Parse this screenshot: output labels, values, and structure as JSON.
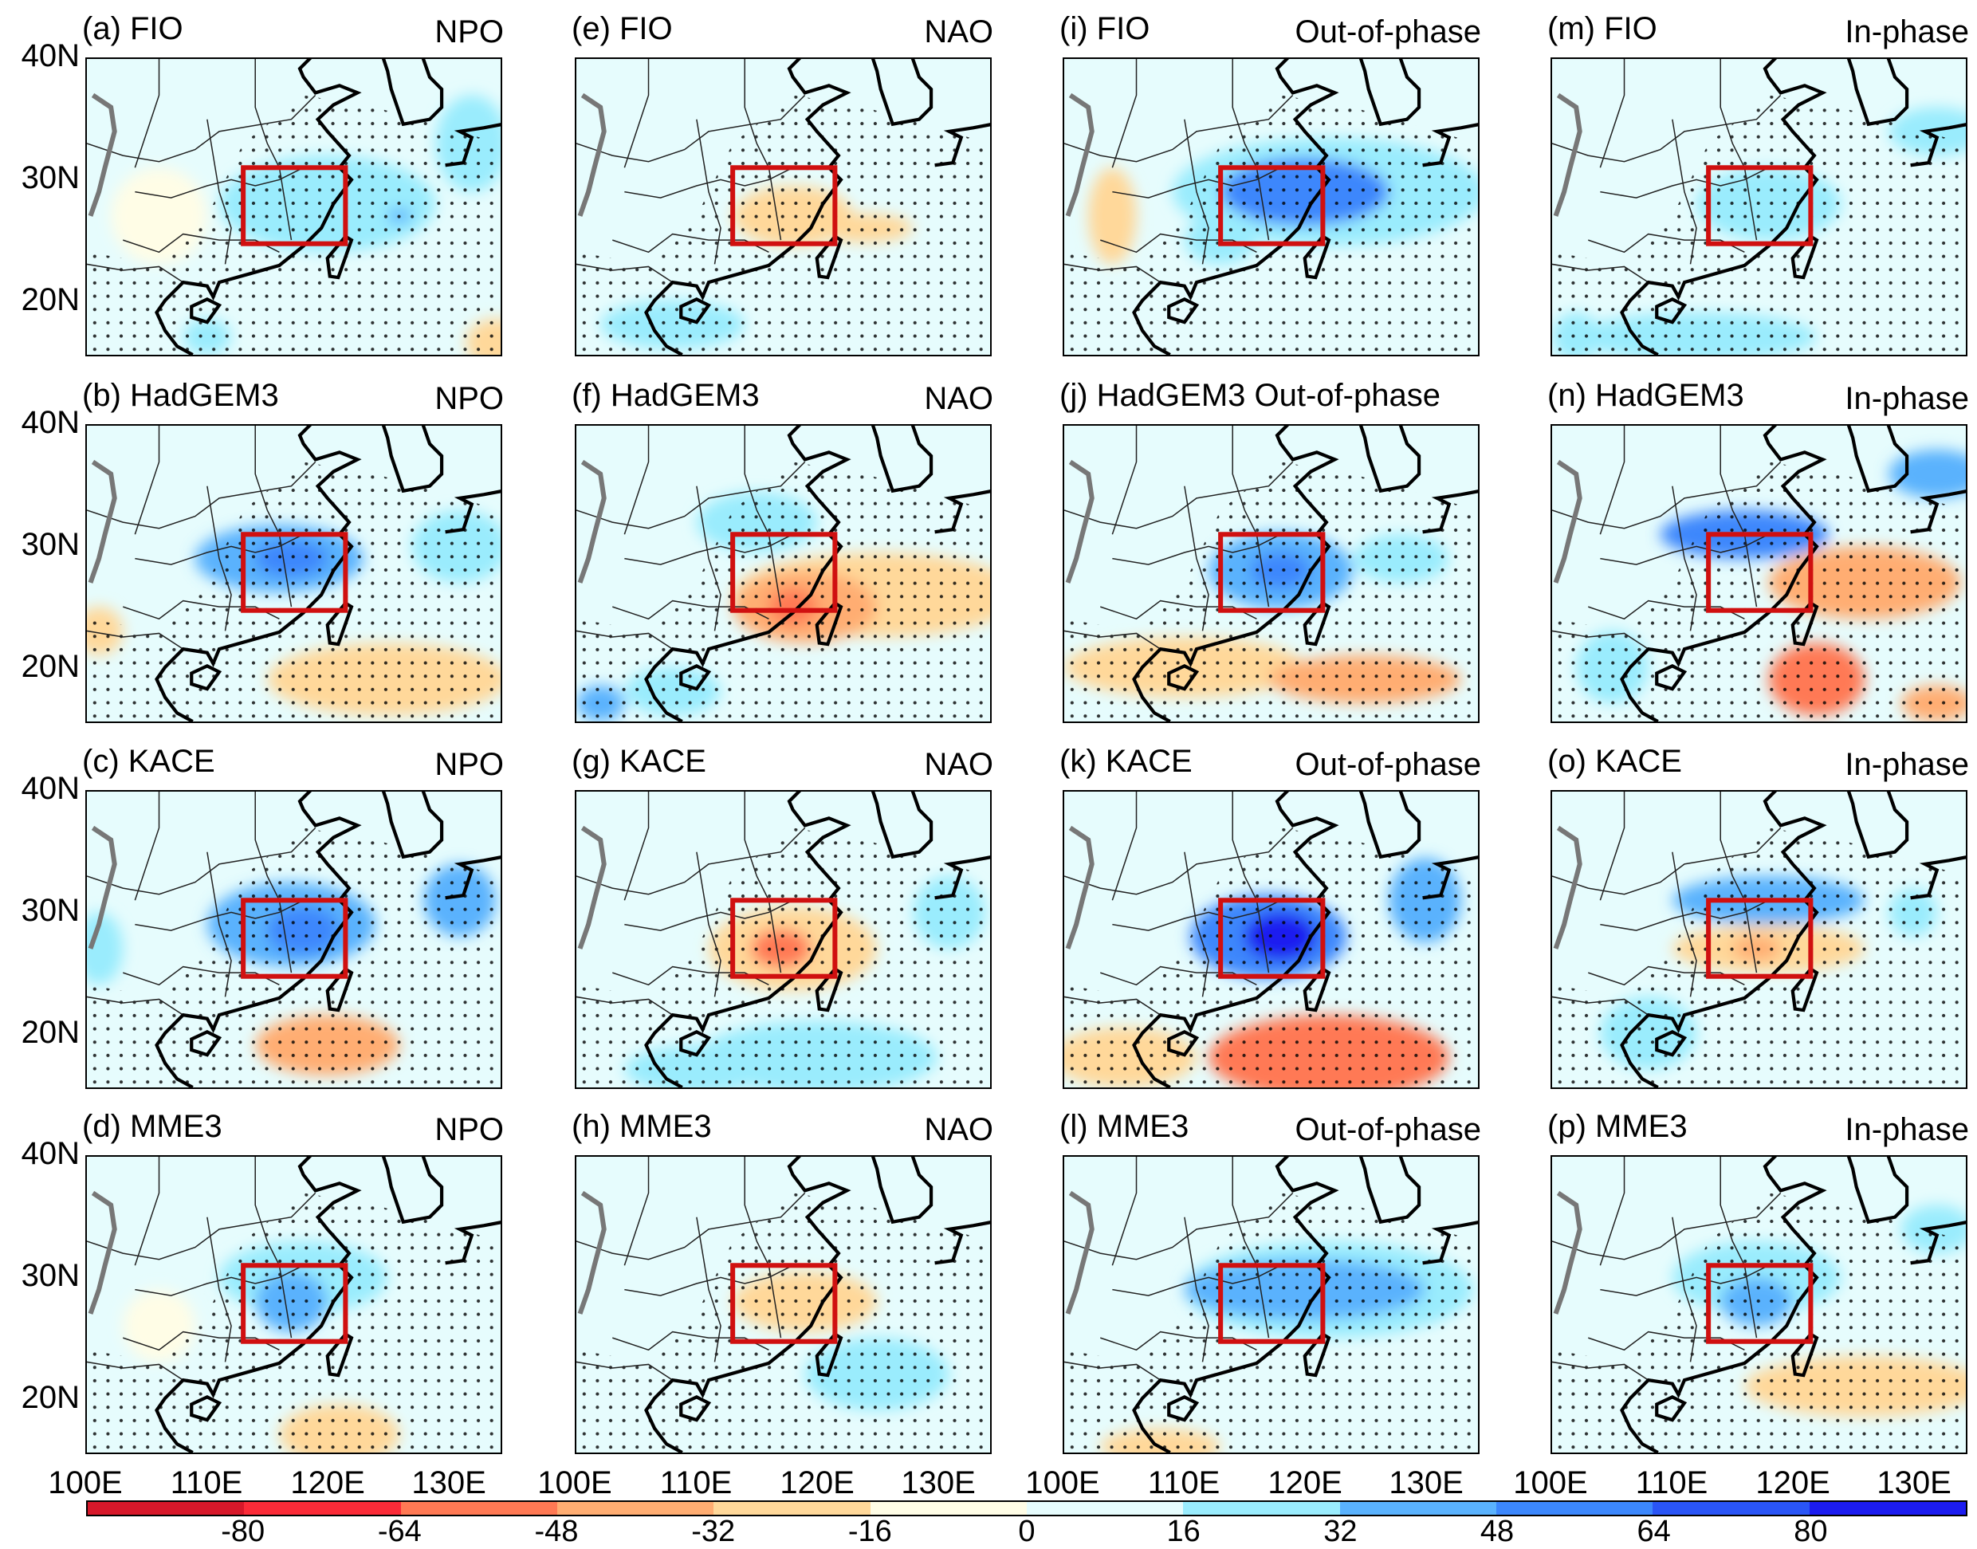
{
  "figure": {
    "lat_labels": [
      "40N",
      "30N",
      "20N"
    ],
    "lon_labels": [
      "100E",
      "110E",
      "120E",
      "130E"
    ],
    "region_box": {
      "lon": [
        113,
        121.5
      ],
      "lat": [
        24.7,
        31.0
      ],
      "color": "#d01010"
    },
    "map_extent": {
      "lon": [
        100,
        134.4
      ],
      "lat": [
        15.5,
        40
      ]
    }
  },
  "colorbar": {
    "levels": [
      -96,
      -80,
      -64,
      -48,
      -32,
      -16,
      0,
      16,
      32,
      48,
      64,
      80,
      96
    ],
    "tick_labels": [
      "-80",
      "-64",
      "-48",
      "-32",
      "-16",
      "0",
      "16",
      "32",
      "48",
      "64",
      "80"
    ],
    "colors": [
      "#d7182a",
      "#fb2b38",
      "#ff7954",
      "#ffad72",
      "#ffd89a",
      "#fffde6",
      "#e6fcfd",
      "#9aecfd",
      "#5ab2fd",
      "#3c87fc",
      "#2a55f6",
      "#1c1cf0"
    ]
  },
  "panels": [
    {
      "title": "(a) FIO",
      "label": "NPO",
      "features": [
        [
          106,
          27,
          4,
          4,
          -8
        ],
        [
          120,
          28,
          9,
          4,
          20
        ],
        [
          132,
          33,
          3,
          4,
          20
        ],
        [
          110,
          17,
          2,
          1.5,
          20
        ],
        [
          134,
          16.5,
          2.5,
          2,
          -20
        ],
        [
          126,
          27,
          1,
          0.6,
          40
        ]
      ]
    },
    {
      "title": "(b) HadGEM3",
      "label": "NPO",
      "features": [
        [
          125,
          19,
          10,
          3,
          -20
        ],
        [
          101,
          23,
          2,
          2,
          -20
        ],
        [
          116,
          29,
          7,
          2.8,
          40
        ],
        [
          117,
          29,
          3,
          1.5,
          50
        ],
        [
          131,
          30,
          4,
          3,
          30
        ]
      ]
    },
    {
      "title": "(c) KACE",
      "label": "NPO",
      "features": [
        [
          120,
          19,
          6,
          2.5,
          -40
        ],
        [
          101,
          27,
          2,
          3,
          20
        ],
        [
          117,
          29,
          7,
          3.5,
          40
        ],
        [
          118,
          28.5,
          3,
          2,
          56
        ],
        [
          131,
          31,
          3,
          3,
          40
        ]
      ]
    },
    {
      "title": "(d) MME3",
      "label": "NPO",
      "features": [
        [
          121,
          17,
          5,
          2.5,
          -20
        ],
        [
          106,
          26,
          3,
          3,
          -8
        ],
        [
          118,
          30,
          7,
          3,
          20
        ],
        [
          117,
          28,
          3,
          2.5,
          40
        ]
      ]
    },
    {
      "title": "(e) FIO",
      "label": "NAO",
      "features": [
        [
          118,
          27,
          5,
          2.5,
          -20
        ],
        [
          124,
          26,
          4,
          1.2,
          -20
        ],
        [
          108,
          18,
          6,
          2,
          20
        ]
      ]
    },
    {
      "title": "(f) HadGEM3",
      "label": "NAO",
      "features": [
        [
          125,
          26,
          12,
          3.5,
          -30
        ],
        [
          119,
          25,
          6,
          3,
          -40
        ],
        [
          118,
          25,
          2,
          1.5,
          -64
        ],
        [
          115,
          32,
          5,
          2.5,
          30
        ],
        [
          108,
          18,
          4,
          2,
          30
        ],
        [
          102,
          17,
          2,
          1.5,
          40
        ]
      ]
    },
    {
      "title": "(g) KACE",
      "label": "NAO",
      "features": [
        [
          118,
          27,
          7,
          3.5,
          -32
        ],
        [
          117,
          27,
          2.5,
          1.6,
          -56
        ],
        [
          120,
          18,
          10,
          3,
          30
        ],
        [
          110,
          17,
          6,
          2,
          30
        ],
        [
          131,
          30,
          3,
          3,
          24
        ]
      ]
    },
    {
      "title": "(h) MME3",
      "label": "NAO",
      "features": [
        [
          119,
          28,
          6,
          2.5,
          -20
        ],
        [
          125,
          22,
          6,
          3,
          20
        ],
        [
          105,
          18,
          4,
          2,
          10
        ]
      ]
    },
    {
      "title": "(i) FIO",
      "label": "Out-of-phase",
      "features": [
        [
          122,
          29,
          13,
          4.5,
          30
        ],
        [
          120,
          29,
          7,
          2.8,
          50
        ],
        [
          113,
          25,
          3,
          2,
          24
        ],
        [
          104,
          27,
          2,
          4,
          -20
        ]
      ]
    },
    {
      "title": "(j) HadGEM3 Out-of-phase",
      "label": "",
      "features": [
        [
          110,
          20,
          10,
          2.5,
          -30
        ],
        [
          125,
          19,
          8,
          2,
          -40
        ],
        [
          118,
          28,
          6,
          3.2,
          40
        ],
        [
          118,
          28,
          2.5,
          1.5,
          56
        ],
        [
          128,
          29,
          4,
          2,
          25
        ]
      ]
    },
    {
      "title": "(k) KACE",
      "label": "Out-of-phase",
      "features": [
        [
          105,
          18,
          6,
          2.5,
          -30
        ],
        [
          122,
          18,
          10,
          3.5,
          -50
        ],
        [
          123,
          17,
          4,
          2,
          -64
        ],
        [
          117,
          28,
          6.5,
          3.5,
          60
        ],
        [
          118,
          28,
          3,
          2,
          80
        ],
        [
          130,
          31,
          3,
          3.5,
          40
        ]
      ]
    },
    {
      "title": "(l) MME3",
      "label": "Out-of-phase",
      "features": [
        [
          108,
          16,
          5,
          1.5,
          -20
        ],
        [
          122,
          29,
          12,
          4,
          25
        ],
        [
          120,
          29,
          10,
          2.5,
          40
        ]
      ]
    },
    {
      "title": "(m) FIO",
      "label": "In-phase",
      "features": [
        [
          118,
          28,
          6,
          3,
          24
        ],
        [
          132,
          34,
          4,
          2,
          24
        ],
        [
          112,
          17,
          10,
          2,
          24
        ],
        [
          102,
          17,
          2,
          2,
          30
        ]
      ]
    },
    {
      "title": "(n) HadGEM3",
      "label": "In-phase",
      "features": [
        [
          126,
          27,
          8,
          3,
          -40
        ],
        [
          122,
          19,
          4,
          3,
          -56
        ],
        [
          132,
          17,
          3,
          1.5,
          -40
        ],
        [
          116,
          31,
          7,
          2,
          50
        ],
        [
          132,
          36,
          4,
          2,
          40
        ],
        [
          105,
          20,
          3,
          3,
          30
        ]
      ]
    },
    {
      "title": "(o) KACE",
      "label": "In-phase",
      "features": [
        [
          118,
          31,
          8,
          2,
          40
        ],
        [
          118,
          27,
          8,
          2,
          -30
        ],
        [
          117,
          27,
          2,
          1,
          -40
        ],
        [
          108,
          20,
          4,
          3,
          30
        ],
        [
          130,
          30,
          2,
          2,
          24
        ]
      ]
    },
    {
      "title": "(p) MME3",
      "label": "In-phase",
      "features": [
        [
          126,
          21,
          10,
          2.5,
          -20
        ],
        [
          117,
          30,
          7,
          3,
          25
        ],
        [
          117,
          28,
          3,
          2,
          40
        ],
        [
          132,
          34,
          3,
          2,
          20
        ]
      ]
    }
  ]
}
